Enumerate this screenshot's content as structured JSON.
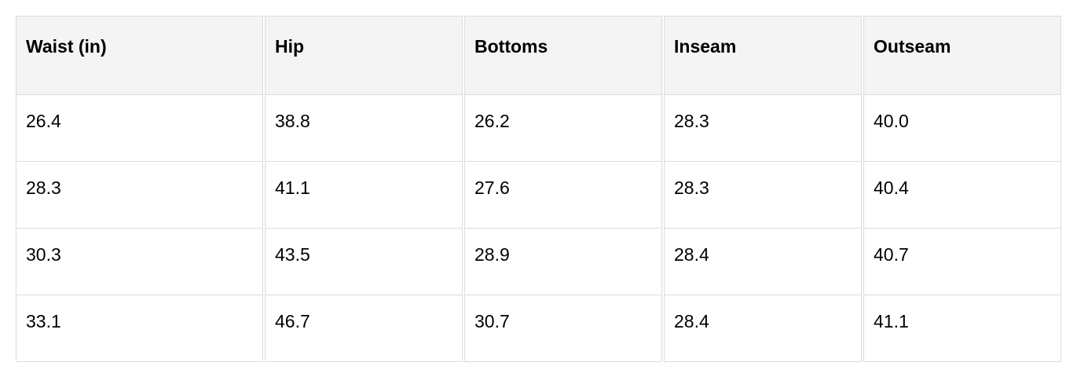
{
  "table": {
    "headers": [
      "Waist (in)",
      "Hip",
      "Bottoms",
      "Inseam",
      "Outseam"
    ],
    "rows": [
      [
        "26.4",
        "38.8",
        "26.2",
        "28.3",
        "40.0"
      ],
      [
        "28.3",
        "41.1",
        "27.6",
        "28.3",
        "40.4"
      ],
      [
        "30.3",
        "43.5",
        "28.9",
        "28.4",
        "40.7"
      ],
      [
        "33.1",
        "46.7",
        "30.7",
        "28.4",
        "41.1"
      ]
    ]
  }
}
